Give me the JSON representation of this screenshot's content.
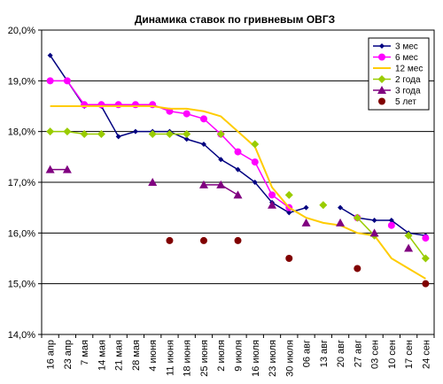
{
  "chart_data": {
    "type": "line",
    "title": "Динамика ставок по гривневым ОВГЗ",
    "xlabel": "",
    "ylabel": "",
    "ylim": [
      14,
      20
    ],
    "yticks": [
      "14,0%",
      "15,0%",
      "16,0%",
      "17,0%",
      "18,0%",
      "19,0%",
      "20,0%"
    ],
    "grid": "horizontal",
    "legend_position": "top-right",
    "categories": [
      "16 апр",
      "23 апр",
      "7 мая",
      "14 мая",
      "21 мая",
      "28 мая",
      "4 июня",
      "11 июня",
      "18 июня",
      "25 июня",
      "2 июля",
      "9 июля",
      "16 июля",
      "23 июля",
      "30 июля",
      "06 авг",
      "13 авг",
      "20 авг",
      "27 авг",
      "03 сен",
      "10 сен",
      "17 сен",
      "24 сен"
    ],
    "series": [
      {
        "name": "3 мес",
        "color": "#000080",
        "marker": "diamond-small",
        "line": true,
        "values": [
          19.5,
          19.0,
          18.5,
          18.5,
          17.9,
          18.0,
          18.0,
          18.0,
          17.85,
          17.75,
          17.45,
          17.25,
          17.0,
          16.6,
          16.4,
          16.5,
          null,
          16.5,
          16.3,
          16.25,
          16.25,
          16.0,
          15.95
        ]
      },
      {
        "name": "6 мес",
        "color": "#ff00ff",
        "marker": "circle",
        "line": true,
        "values": [
          19.0,
          19.0,
          18.53,
          18.53,
          18.53,
          18.53,
          18.53,
          18.4,
          18.35,
          18.25,
          17.95,
          17.6,
          17.4,
          16.75,
          16.5,
          null,
          null,
          null,
          16.3,
          null,
          16.15,
          null,
          15.9
        ]
      },
      {
        "name": "12 мес",
        "color": "#ffcc00",
        "marker": "none",
        "line": true,
        "values": [
          18.5,
          18.5,
          18.5,
          18.5,
          18.5,
          18.5,
          18.5,
          18.45,
          18.45,
          18.4,
          18.3,
          18.0,
          17.7,
          16.9,
          16.5,
          16.3,
          16.2,
          16.15,
          16.0,
          15.95,
          15.5,
          15.3,
          15.1
        ]
      },
      {
        "name": "2 года",
        "color": "#99cc00",
        "marker": "diamond",
        "line": true,
        "values": [
          18.0,
          18.0,
          17.95,
          17.95,
          null,
          null,
          17.95,
          17.95,
          17.95,
          null,
          17.95,
          null,
          17.75,
          null,
          16.75,
          null,
          16.55,
          null,
          16.3,
          15.95,
          null,
          15.95,
          15.5
        ]
      },
      {
        "name": "3 года",
        "color": "#800080",
        "marker": "triangle",
        "line": true,
        "values": [
          17.25,
          17.25,
          null,
          null,
          null,
          null,
          17.0,
          null,
          null,
          16.95,
          16.95,
          16.75,
          null,
          16.55,
          null,
          16.2,
          null,
          16.2,
          null,
          16.0,
          null,
          15.7,
          null
        ]
      },
      {
        "name": "5 лет",
        "color": "#800000",
        "marker": "circle",
        "line": false,
        "values": [
          null,
          null,
          null,
          null,
          null,
          null,
          null,
          15.85,
          null,
          15.85,
          null,
          15.85,
          null,
          null,
          15.5,
          null,
          null,
          null,
          15.3,
          null,
          null,
          null,
          15.0
        ]
      }
    ]
  }
}
